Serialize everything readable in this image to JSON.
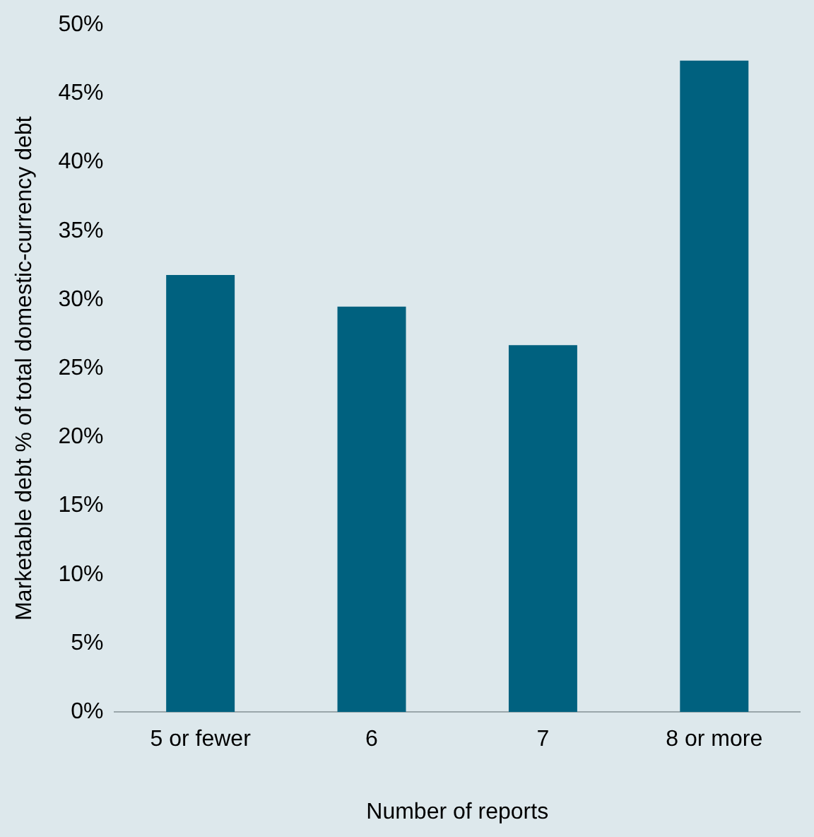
{
  "chart_data": {
    "type": "bar",
    "xlabel": "Number of reports",
    "ylabel": "Marketable debt % of total domestic-currency debt",
    "categories": [
      "5 or fewer",
      "6",
      "7",
      "8 or more"
    ],
    "values": [
      31.8,
      29.5,
      26.7,
      47.4
    ],
    "color": "#00617f",
    "ylim": [
      0,
      50
    ],
    "yticks": [
      {
        "value": 0,
        "label": "0%"
      },
      {
        "value": 5,
        "label": "5%"
      },
      {
        "value": 10,
        "label": "10%"
      },
      {
        "value": 15,
        "label": "15%"
      },
      {
        "value": 20,
        "label": "20%"
      },
      {
        "value": 25,
        "label": "25%"
      },
      {
        "value": 30,
        "label": "30%"
      },
      {
        "value": 35,
        "label": "35%"
      },
      {
        "value": 40,
        "label": "40%"
      },
      {
        "value": 45,
        "label": "45%"
      },
      {
        "value": 50,
        "label": "50%"
      }
    ],
    "grid": false,
    "legend": false
  }
}
